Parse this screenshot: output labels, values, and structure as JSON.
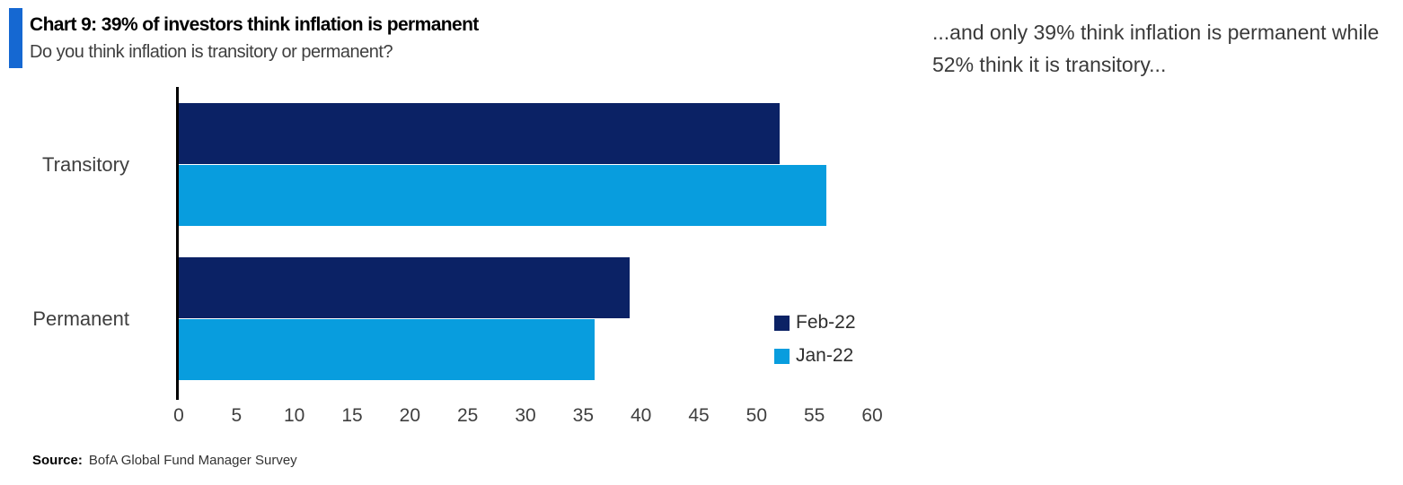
{
  "colors": {
    "accent_bar": "#1568d2",
    "axis": "#000000",
    "feb_navy": "#0b2265",
    "jan_blue": "#089dde"
  },
  "chart_data": {
    "type": "bar",
    "orientation": "horizontal",
    "title": "Chart 9: 39% of investors think inflation is permanent",
    "subtitle": "Do you think inflation is transitory or permanent?",
    "annotation": "...and only 39% think inflation is permanent while 52% think it is transitory...",
    "source_label": "Source:",
    "source_text": "BofA Global Fund Manager Survey",
    "categories": [
      "Transitory",
      "Permanent"
    ],
    "series": [
      {
        "name": "Feb-22",
        "color": "#0b2265",
        "values": [
          52,
          39
        ]
      },
      {
        "name": "Jan-22",
        "color": "#089dde",
        "values": [
          56,
          36
        ]
      }
    ],
    "xlim": [
      0,
      60
    ],
    "xticks": [
      0,
      5,
      10,
      15,
      20,
      25,
      30,
      35,
      40,
      45,
      50,
      55,
      60
    ],
    "xlabel": "",
    "ylabel": "",
    "grid": false,
    "legend_position": "right-center"
  }
}
